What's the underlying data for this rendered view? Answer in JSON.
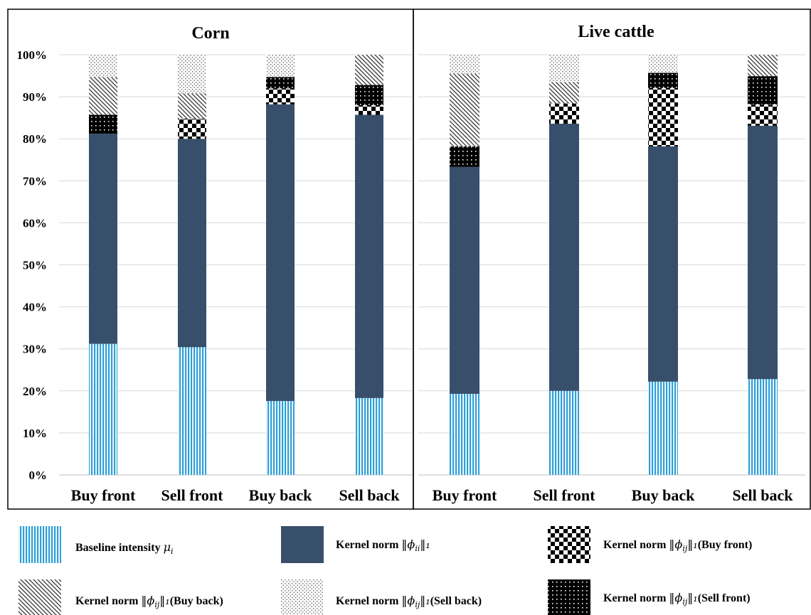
{
  "chart_data": {
    "type": "bar",
    "stacked": true,
    "y_axis": {
      "ylim": [
        0,
        100
      ],
      "unit": "%",
      "ticks": [
        "0%",
        "10%",
        "20%",
        "30%",
        "40%",
        "50%",
        "60%",
        "70%",
        "80%",
        "90%",
        "100%"
      ]
    },
    "grid": true,
    "legend_placement": "bottom",
    "categories": [
      "Buy front",
      "Sell front",
      "Buy back",
      "Sell back"
    ],
    "components": [
      {
        "key": "baseline",
        "label": "Baseline intensity ",
        "math": "μ",
        "sub": "i",
        "suffix": "",
        "pattern": "vertical-lines",
        "color": "#2e9fd8"
      },
      {
        "key": "self",
        "label": "Kernel norm ",
        "math": "‖ϕ",
        "sub": "ii",
        "after": "‖₁",
        "suffix": "",
        "pattern": "solid",
        "color": "#374f6b"
      },
      {
        "key": "buy_front",
        "label": "Kernel norm ",
        "math": "‖ϕ",
        "sub": "ij",
        "after": "‖₁",
        "suffix": "(Buy front)",
        "pattern": "checkerboard",
        "color": "#000000"
      },
      {
        "key": "buy_back",
        "label": "Kernel norm ",
        "math": "‖ϕ",
        "sub": "ij",
        "after": "‖₁",
        "suffix": "(Buy back)",
        "pattern": "diagonal-lines",
        "color": "#555555"
      },
      {
        "key": "sell_back",
        "label": "Kernel norm ",
        "math": "‖ϕ",
        "sub": "ij",
        "after": "‖₁",
        "suffix": "(Sell back)",
        "pattern": "sparse-dots",
        "color": "#777777"
      },
      {
        "key": "sell_front",
        "label": "Kernel norm ",
        "math": "‖ϕ",
        "sub": "ij",
        "after": "‖₁",
        "suffix": "(Sell front)",
        "pattern": "dark-dots",
        "color": "#000000"
      }
    ],
    "panels": [
      {
        "title": "Corn",
        "bars": [
          {
            "category": "Buy front",
            "segments": [
              {
                "component": "baseline",
                "value": 31.2
              },
              {
                "component": "self",
                "value": 50.0
              },
              {
                "component": "sell_front",
                "value": 4.5
              },
              {
                "component": "buy_back",
                "value": 9.0
              },
              {
                "component": "sell_back",
                "value": 5.3
              }
            ]
          },
          {
            "category": "Sell front",
            "segments": [
              {
                "component": "baseline",
                "value": 30.4
              },
              {
                "component": "self",
                "value": 49.6
              },
              {
                "component": "buy_front",
                "value": 4.8
              },
              {
                "component": "buy_back",
                "value": 6.0
              },
              {
                "component": "sell_back",
                "value": 9.2
              }
            ]
          },
          {
            "category": "Buy back",
            "segments": [
              {
                "component": "baseline",
                "value": 17.6
              },
              {
                "component": "self",
                "value": 70.6
              },
              {
                "component": "buy_front",
                "value": 3.8
              },
              {
                "component": "sell_front",
                "value": 2.7
              },
              {
                "component": "sell_back",
                "value": 5.3
              }
            ]
          },
          {
            "category": "Sell back",
            "segments": [
              {
                "component": "baseline",
                "value": 18.3
              },
              {
                "component": "self",
                "value": 67.4
              },
              {
                "component": "buy_front",
                "value": 2.3
              },
              {
                "component": "sell_front",
                "value": 4.8
              },
              {
                "component": "buy_back",
                "value": 7.2
              }
            ]
          }
        ]
      },
      {
        "title": "Live cattle",
        "bars": [
          {
            "category": "Buy front",
            "segments": [
              {
                "component": "baseline",
                "value": 19.3
              },
              {
                "component": "self",
                "value": 54.0
              },
              {
                "component": "sell_front",
                "value": 4.9
              },
              {
                "component": "buy_back",
                "value": 17.3
              },
              {
                "component": "sell_back",
                "value": 4.5
              }
            ]
          },
          {
            "category": "Sell front",
            "segments": [
              {
                "component": "baseline",
                "value": 20.0
              },
              {
                "component": "self",
                "value": 63.6
              },
              {
                "component": "buy_front",
                "value": 4.8
              },
              {
                "component": "buy_back",
                "value": 5.1
              },
              {
                "component": "sell_back",
                "value": 6.5
              }
            ]
          },
          {
            "category": "Buy back",
            "segments": [
              {
                "component": "baseline",
                "value": 22.2
              },
              {
                "component": "self",
                "value": 56.0
              },
              {
                "component": "buy_front",
                "value": 13.9
              },
              {
                "component": "sell_front",
                "value": 3.6
              },
              {
                "component": "sell_back",
                "value": 4.3
              }
            ]
          },
          {
            "category": "Sell back",
            "segments": [
              {
                "component": "baseline",
                "value": 22.8
              },
              {
                "component": "self",
                "value": 60.3
              },
              {
                "component": "buy_front",
                "value": 5.1
              },
              {
                "component": "sell_front",
                "value": 6.7
              },
              {
                "component": "buy_back",
                "value": 5.1
              }
            ]
          }
        ]
      }
    ]
  }
}
